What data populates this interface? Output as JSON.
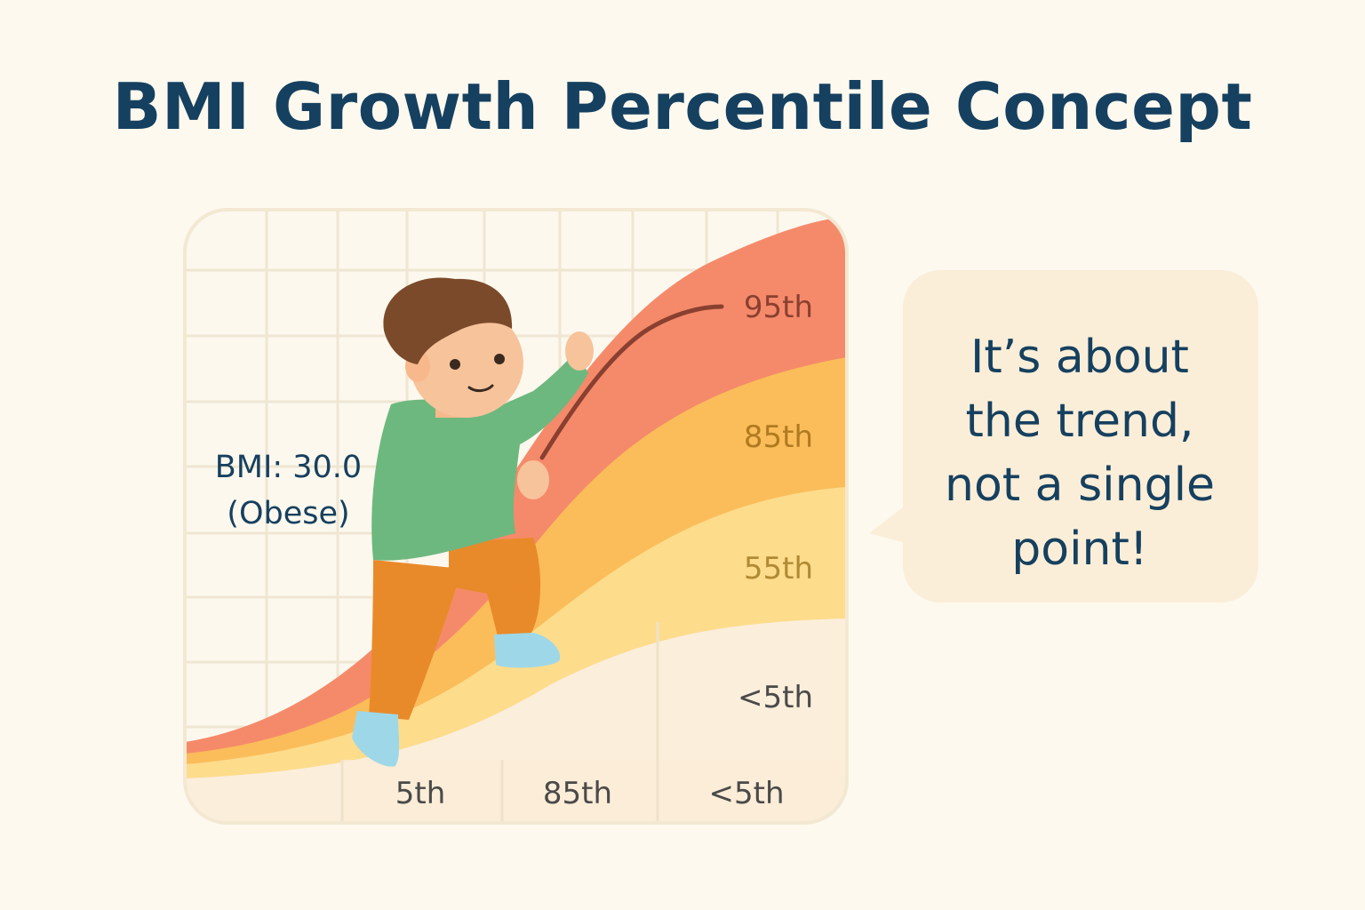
{
  "title": "BMI Growth Percentile Concept",
  "bmi_label": {
    "value": "BMI: 30.0",
    "category": "(Obese)"
  },
  "speech_bubble": {
    "lines": [
      "It’s about",
      "the trend,",
      "not a single",
      "point!"
    ]
  },
  "bands": [
    {
      "label": "95th",
      "color": "#f58a6a",
      "text_color": "#8a4030"
    },
    {
      "label": "85th",
      "color": "#fbbd5a",
      "text_color": "#b07a20"
    },
    {
      "label": "55th",
      "color": "#fddc8c",
      "text_color": "#b08a35"
    },
    {
      "label": "<5th",
      "color": "#fbeedb",
      "text_color": "#4a4a4a"
    }
  ],
  "x_axis_labels": [
    "5th",
    "85th",
    "<5th"
  ],
  "colors": {
    "title": "#16405f",
    "background": "#fdf9ef",
    "grid": "#efe6d3",
    "bubble": "#fbeed8",
    "trend_line": "#8a4030"
  },
  "illustration": {
    "subject": "child-climbing-curve-icon"
  }
}
